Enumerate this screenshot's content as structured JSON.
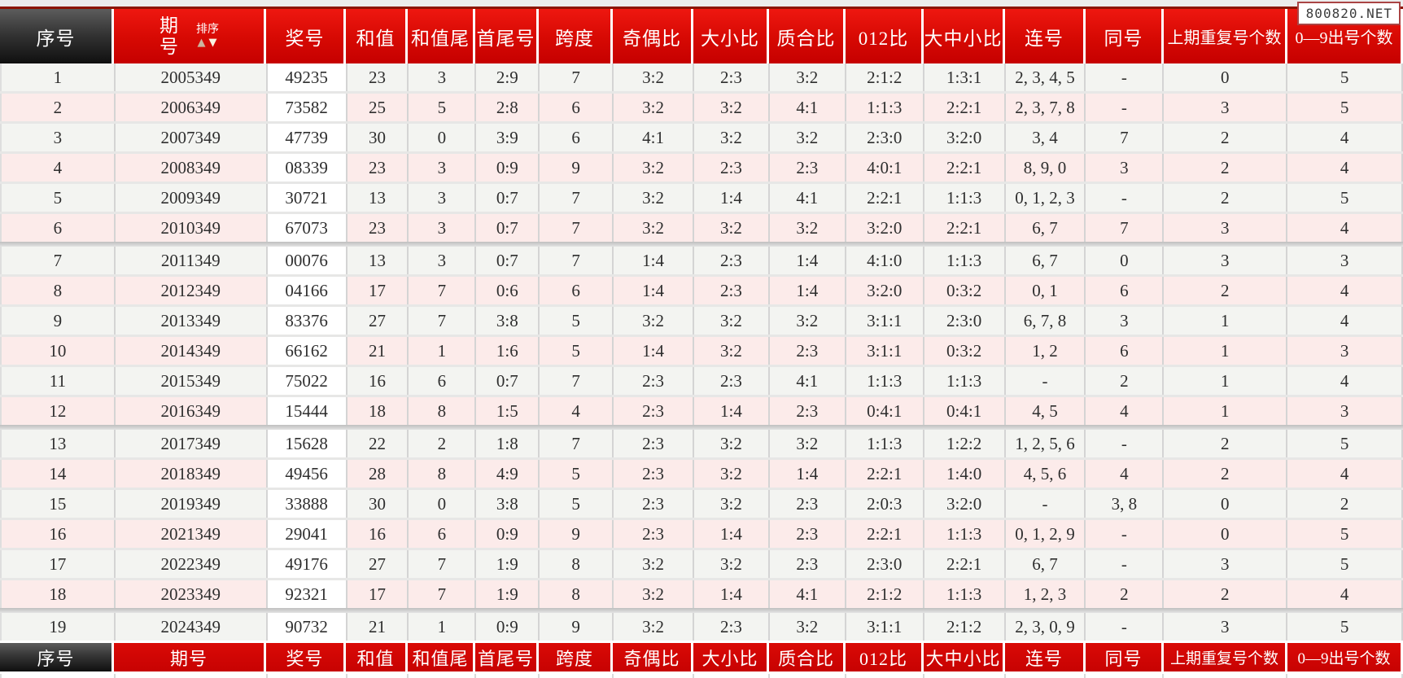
{
  "watermark": {
    "text": "800820.NET"
  },
  "header": {
    "sort_label": "排序",
    "sort_up_icon": "▲",
    "sort_down_icon": "▼"
  },
  "columns": [
    {
      "key": "xuhao",
      "label": "序号"
    },
    {
      "key": "qihao",
      "label": "期号"
    },
    {
      "key": "jianghao",
      "label": "奖号"
    },
    {
      "key": "hezhi",
      "label": "和值"
    },
    {
      "key": "hezhiwei",
      "label": "和值尾"
    },
    {
      "key": "shouweihao",
      "label": "首尾号"
    },
    {
      "key": "kuadu",
      "label": "跨度"
    },
    {
      "key": "jioubi",
      "label": "奇偶比"
    },
    {
      "key": "daxiaobi",
      "label": "大小比"
    },
    {
      "key": "zhihebi",
      "label": "质合比"
    },
    {
      "key": "bi012",
      "label": "012比"
    },
    {
      "key": "dazhongxiaobi",
      "label": "大中小比"
    },
    {
      "key": "lianhao",
      "label": "连号"
    },
    {
      "key": "tonghao",
      "label": "同号"
    },
    {
      "key": "shangqichongfu",
      "label": "上期重复号个数"
    },
    {
      "key": "chuhao09",
      "label": "0—9出号个数"
    }
  ],
  "group_size": 6,
  "rows": [
    [
      "1",
      "2005349",
      "49235",
      "23",
      "3",
      "2:9",
      "7",
      "3:2",
      "2:3",
      "3:2",
      "2:1:2",
      "1:3:1",
      "2, 3, 4, 5",
      "-",
      "0",
      "5"
    ],
    [
      "2",
      "2006349",
      "73582",
      "25",
      "5",
      "2:8",
      "6",
      "3:2",
      "3:2",
      "4:1",
      "1:1:3",
      "2:2:1",
      "2, 3, 7, 8",
      "-",
      "3",
      "5"
    ],
    [
      "3",
      "2007349",
      "47739",
      "30",
      "0",
      "3:9",
      "6",
      "4:1",
      "3:2",
      "3:2",
      "2:3:0",
      "3:2:0",
      "3, 4",
      "7",
      "2",
      "4"
    ],
    [
      "4",
      "2008349",
      "08339",
      "23",
      "3",
      "0:9",
      "9",
      "3:2",
      "2:3",
      "2:3",
      "4:0:1",
      "2:2:1",
      "8, 9, 0",
      "3",
      "2",
      "4"
    ],
    [
      "5",
      "2009349",
      "30721",
      "13",
      "3",
      "0:7",
      "7",
      "3:2",
      "1:4",
      "4:1",
      "2:2:1",
      "1:1:3",
      "0, 1, 2, 3",
      "-",
      "2",
      "5"
    ],
    [
      "6",
      "2010349",
      "67073",
      "23",
      "3",
      "0:7",
      "7",
      "3:2",
      "3:2",
      "3:2",
      "3:2:0",
      "2:2:1",
      "6, 7",
      "7",
      "3",
      "4"
    ],
    [
      "7",
      "2011349",
      "00076",
      "13",
      "3",
      "0:7",
      "7",
      "1:4",
      "2:3",
      "1:4",
      "4:1:0",
      "1:1:3",
      "6, 7",
      "0",
      "3",
      "3"
    ],
    [
      "8",
      "2012349",
      "04166",
      "17",
      "7",
      "0:6",
      "6",
      "1:4",
      "2:3",
      "1:4",
      "3:2:0",
      "0:3:2",
      "0, 1",
      "6",
      "2",
      "4"
    ],
    [
      "9",
      "2013349",
      "83376",
      "27",
      "7",
      "3:8",
      "5",
      "3:2",
      "3:2",
      "3:2",
      "3:1:1",
      "2:3:0",
      "6, 7, 8",
      "3",
      "1",
      "4"
    ],
    [
      "10",
      "2014349",
      "66162",
      "21",
      "1",
      "1:6",
      "5",
      "1:4",
      "3:2",
      "2:3",
      "3:1:1",
      "0:3:2",
      "1, 2",
      "6",
      "1",
      "3"
    ],
    [
      "11",
      "2015349",
      "75022",
      "16",
      "6",
      "0:7",
      "7",
      "2:3",
      "2:3",
      "4:1",
      "1:1:3",
      "1:1:3",
      "-",
      "2",
      "1",
      "4"
    ],
    [
      "12",
      "2016349",
      "15444",
      "18",
      "8",
      "1:5",
      "4",
      "2:3",
      "1:4",
      "2:3",
      "0:4:1",
      "0:4:1",
      "4, 5",
      "4",
      "1",
      "3"
    ],
    [
      "13",
      "2017349",
      "15628",
      "22",
      "2",
      "1:8",
      "7",
      "2:3",
      "3:2",
      "3:2",
      "1:1:3",
      "1:2:2",
      "1, 2, 5, 6",
      "-",
      "2",
      "5"
    ],
    [
      "14",
      "2018349",
      "49456",
      "28",
      "8",
      "4:9",
      "5",
      "2:3",
      "3:2",
      "1:4",
      "2:2:1",
      "1:4:0",
      "4, 5, 6",
      "4",
      "2",
      "4"
    ],
    [
      "15",
      "2019349",
      "33888",
      "30",
      "0",
      "3:8",
      "5",
      "2:3",
      "3:2",
      "2:3",
      "2:0:3",
      "3:2:0",
      "-",
      "3, 8",
      "0",
      "2"
    ],
    [
      "16",
      "2021349",
      "29041",
      "16",
      "6",
      "0:9",
      "9",
      "2:3",
      "1:4",
      "2:3",
      "2:2:1",
      "1:1:3",
      "0, 1, 2, 9",
      "-",
      "0",
      "5"
    ],
    [
      "17",
      "2022349",
      "49176",
      "27",
      "7",
      "1:9",
      "8",
      "3:2",
      "3:2",
      "2:3",
      "2:3:0",
      "2:2:1",
      "6, 7",
      "-",
      "3",
      "5"
    ],
    [
      "18",
      "2023349",
      "92321",
      "17",
      "7",
      "1:9",
      "8",
      "3:2",
      "1:4",
      "4:1",
      "2:1:2",
      "1:1:3",
      "1, 2, 3",
      "2",
      "2",
      "4"
    ],
    [
      "19",
      "2024349",
      "90732",
      "21",
      "1",
      "0:9",
      "9",
      "3:2",
      "2:3",
      "3:2",
      "3:1:1",
      "2:1:2",
      "2, 3, 0, 9",
      "-",
      "3",
      "5"
    ]
  ],
  "colors": {
    "header_red": "#cc0000",
    "header_red_top": "#ee1710",
    "maroon_border": "#8c1400",
    "dark_cell": "#2b2b2b",
    "row_gray": "#f3f4f1",
    "row_pink": "#fcebea",
    "prize_cell": "#ffffff",
    "watermark_border": "#aa4444"
  }
}
